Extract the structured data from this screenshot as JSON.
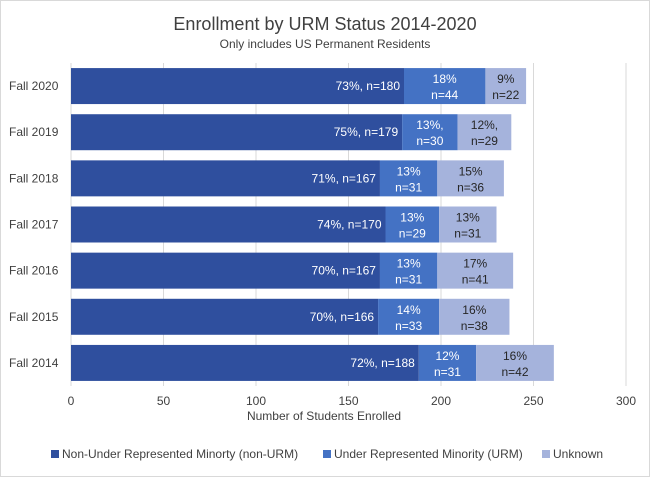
{
  "chart_data": {
    "type": "bar",
    "orientation": "horizontal",
    "stacked": true,
    "title": "Enrollment by URM Status 2014-2020",
    "subtitle": "Only includes US Permanent  Residents",
    "xlabel": "Number  of Students Enrolled",
    "ylabel": "",
    "xlim": [
      0,
      300
    ],
    "xticks": [
      "0",
      "50",
      "100",
      "150",
      "200",
      "250",
      "300"
    ],
    "grid": true,
    "legend_position": "bottom",
    "categories": [
      "Fall 2020",
      "Fall 2019",
      "Fall 2018",
      "Fall 2017",
      "Fall 2016",
      "Fall 2015",
      "Fall 2014"
    ],
    "series": [
      {
        "name": "Non-Under Represented Minorty (non-URM)",
        "color": "#2f4f9e",
        "label_color": "#ffffff",
        "values": [
          180,
          179,
          167,
          170,
          167,
          166,
          188
        ],
        "labels": [
          "73%, n=180",
          "75%, n=179",
          "71%, n=167",
          "74%, n=170",
          "70%, n=167",
          "70%, n=166",
          "72%, n=188"
        ]
      },
      {
        "name": "Under Represented Minority (URM)",
        "color": "#4472c4",
        "label_color": "#ffffff",
        "values": [
          44,
          30,
          31,
          29,
          31,
          33,
          31
        ],
        "labels": [
          [
            "18%",
            "n=44"
          ],
          [
            "13%,",
            "n=30"
          ],
          [
            "13%",
            "n=31"
          ],
          [
            "13%",
            "n=29"
          ],
          [
            "13%",
            "n=31"
          ],
          [
            "14%",
            "n=33"
          ],
          [
            "12%",
            "n=31"
          ]
        ]
      },
      {
        "name": "Unknown",
        "color": "#a5b3dc",
        "label_color": "#262626",
        "values": [
          22,
          29,
          36,
          31,
          41,
          38,
          42
        ],
        "labels": [
          [
            "9%",
            "n=22"
          ],
          [
            "12%,",
            "n=29"
          ],
          [
            "15%",
            "n=36"
          ],
          [
            "13%",
            "n=31"
          ],
          [
            "17%",
            "n=41"
          ],
          [
            "16%",
            "n=38"
          ],
          [
            "16%",
            "n=42"
          ]
        ]
      }
    ]
  }
}
